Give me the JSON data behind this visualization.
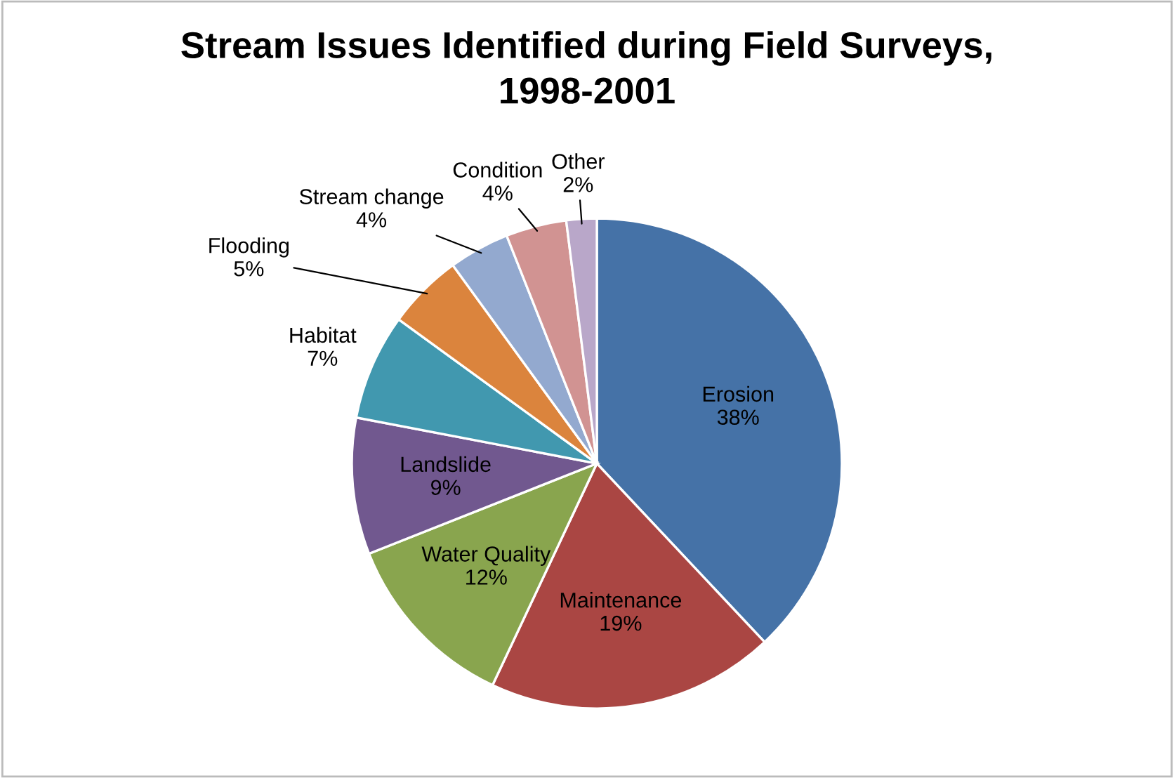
{
  "chart_data": {
    "type": "pie",
    "title": "Stream Issues Identified during Field Surveys,\n1998-2001",
    "categories": [
      "Erosion",
      "Maintenance",
      "Water Quality",
      "Landslide",
      "Habitat",
      "Flooding",
      "Stream change",
      "Condition",
      "Other"
    ],
    "values": [
      38,
      19,
      12,
      9,
      7,
      5,
      4,
      4,
      2
    ],
    "colors": [
      "#4572a7",
      "#aa4643",
      "#89a54e",
      "#71588f",
      "#4198af",
      "#db843d",
      "#93a9cf",
      "#d19392",
      "#b9a7c9"
    ],
    "value_labels": [
      "38%",
      "19%",
      "12%",
      "9%",
      "7%",
      "5%",
      "4%",
      "4%",
      "2%"
    ],
    "legend": false
  }
}
